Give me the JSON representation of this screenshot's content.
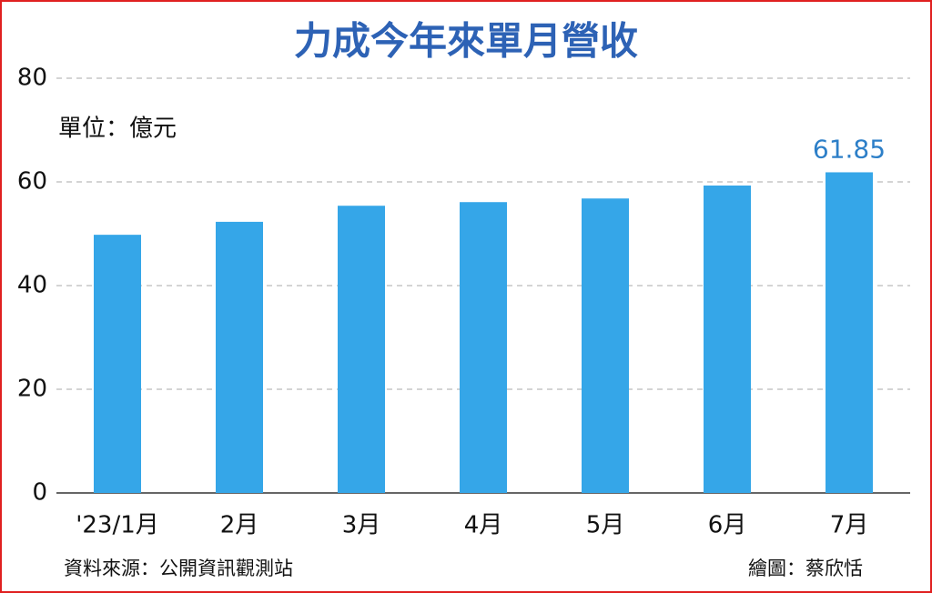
{
  "chart_data": {
    "type": "bar",
    "title": "力成今年來單月營收",
    "unit_label": "單位：億元",
    "categories": [
      "'23/1月",
      "2月",
      "3月",
      "4月",
      "5月",
      "6月",
      "7月"
    ],
    "values": [
      49.8,
      52.3,
      55.4,
      56.1,
      56.8,
      59.3,
      61.85
    ],
    "value_labels": [
      null,
      null,
      null,
      null,
      null,
      null,
      "61.85"
    ],
    "color": "#35a6e8",
    "ylim": [
      0,
      80
    ],
    "yticks": [
      0,
      20,
      40,
      60,
      80
    ],
    "grid": true,
    "source": "資料來源：公開資訊觀測站",
    "credit": "繪圖：蔡欣恬"
  }
}
